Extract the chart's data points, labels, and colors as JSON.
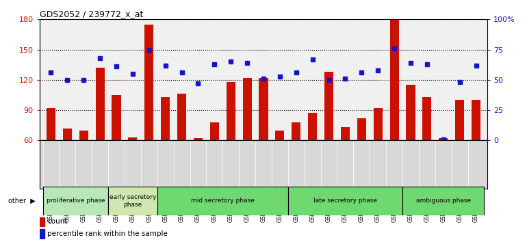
{
  "title": "GDS2052 / 239772_x_at",
  "samples": [
    "GSM109814",
    "GSM109815",
    "GSM109816",
    "GSM109817",
    "GSM109820",
    "GSM109821",
    "GSM109822",
    "GSM109824",
    "GSM109825",
    "GSM109826",
    "GSM109827",
    "GSM109828",
    "GSM109829",
    "GSM109830",
    "GSM109831",
    "GSM109834",
    "GSM109835",
    "GSM109836",
    "GSM109837",
    "GSM109838",
    "GSM109839",
    "GSM109818",
    "GSM109819",
    "GSM109823",
    "GSM109832",
    "GSM109833",
    "GSM109840"
  ],
  "counts": [
    92,
    72,
    70,
    132,
    105,
    63,
    175,
    103,
    106,
    62,
    78,
    118,
    122,
    122,
    70,
    78,
    87,
    128,
    73,
    82,
    92,
    180,
    115,
    103,
    62,
    100,
    100
  ],
  "percentiles": [
    56,
    50,
    50,
    68,
    61,
    55,
    75,
    62,
    56,
    47,
    63,
    65,
    64,
    51,
    53,
    56,
    67,
    50,
    51,
    56,
    58,
    76,
    64,
    63,
    1,
    48,
    62
  ],
  "phase_defs": [
    {
      "start": 0,
      "end": 4,
      "color": "#b8e8b8",
      "label": "proliferative phase"
    },
    {
      "start": 4,
      "end": 7,
      "color": "#d0e8b0",
      "label": "early secretory\nphase"
    },
    {
      "start": 7,
      "end": 15,
      "color": "#70d870",
      "label": "mid secretory phase"
    },
    {
      "start": 15,
      "end": 22,
      "color": "#70d870",
      "label": "late secretory phase"
    },
    {
      "start": 22,
      "end": 27,
      "color": "#70d870",
      "label": "ambiguous phase"
    }
  ],
  "bar_color": "#cc1100",
  "dot_color": "#1414cc",
  "bar_width": 0.55,
  "ylim_left": [
    60,
    180
  ],
  "ylim_right": [
    0,
    100
  ],
  "yticks_left": [
    60,
    90,
    120,
    150,
    180
  ],
  "yticks_right": [
    0,
    25,
    50,
    75,
    100
  ],
  "ytick_labels_right": [
    "0",
    "25",
    "50",
    "75",
    "100%"
  ],
  "plot_bg": "#f0f0f0",
  "label_bg": "#d8d8d8",
  "fig_width": 7.7,
  "fig_height": 3.54
}
